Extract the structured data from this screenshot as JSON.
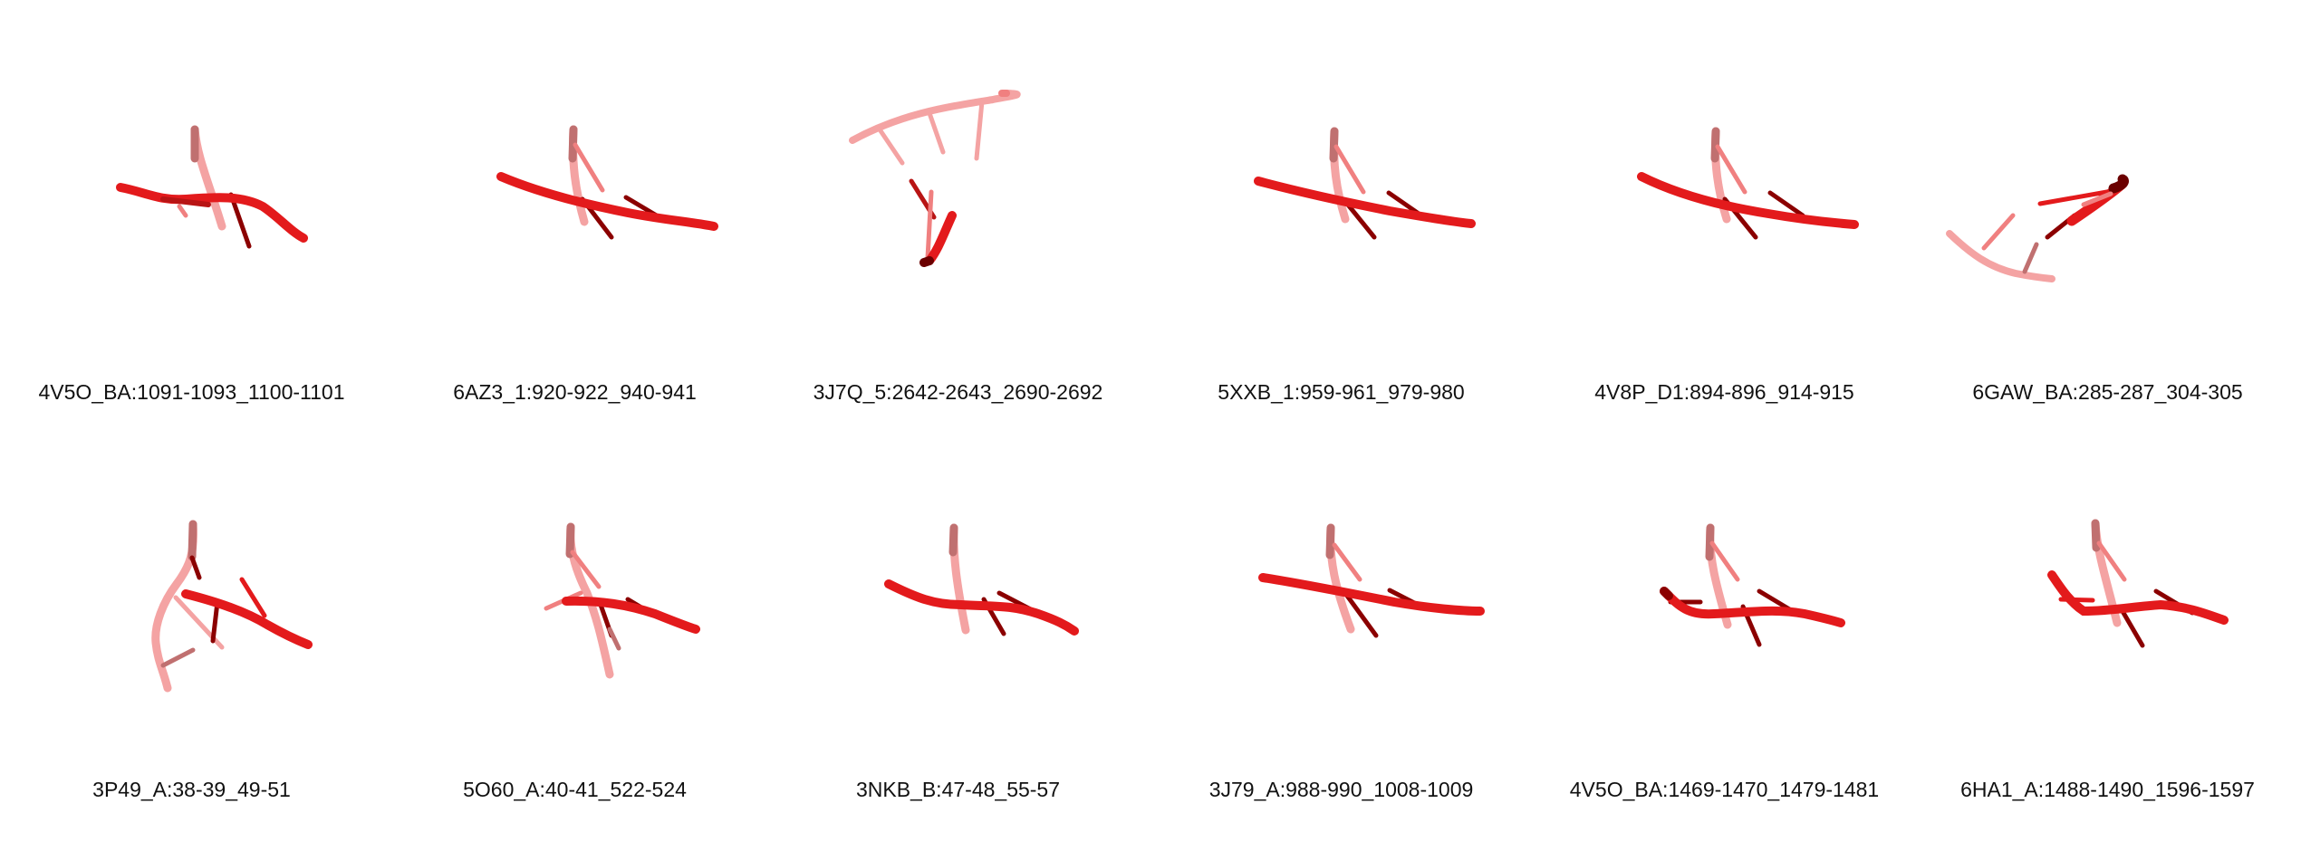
{
  "panels": [
    {
      "label": "4V5O_BA:1091-1093_1100-1101",
      "structure_icon": "rna-backbone-render-icon"
    },
    {
      "label": "6AZ3_1:920-922_940-941",
      "structure_icon": "rna-backbone-render-icon"
    },
    {
      "label": "3J7Q_5:2642-2643_2690-2692",
      "structure_icon": "rna-backbone-render-icon"
    },
    {
      "label": "5XXB_1:959-961_979-980",
      "structure_icon": "rna-backbone-render-icon"
    },
    {
      "label": "4V8P_D1:894-896_914-915",
      "structure_icon": "rna-backbone-render-icon"
    },
    {
      "label": "6GAW_BA:285-287_304-305",
      "structure_icon": "rna-backbone-render-icon"
    },
    {
      "label": "3P49_A:38-39_49-51",
      "structure_icon": "rna-backbone-render-icon"
    },
    {
      "label": "5O60_A:40-41_522-524",
      "structure_icon": "rna-backbone-render-icon"
    },
    {
      "label": "3NKB_B:47-48_55-57",
      "structure_icon": "rna-backbone-render-icon"
    },
    {
      "label": "3J79_A:988-990_1008-1009",
      "structure_icon": "rna-backbone-render-icon"
    },
    {
      "label": "4V5O_BA:1469-1470_1479-1481",
      "structure_icon": "rna-backbone-render-icon"
    },
    {
      "label": "6HA1_A:1488-1490_1596-1597",
      "structure_icon": "rna-backbone-render-icon"
    }
  ],
  "colors": {
    "strand_main": "#e31a1c",
    "strand_dark": "#8b0000",
    "strand_light": "#f08080",
    "strand_pale": "#f4a3a3",
    "caption_text": "#111111",
    "background": "#ffffff"
  }
}
